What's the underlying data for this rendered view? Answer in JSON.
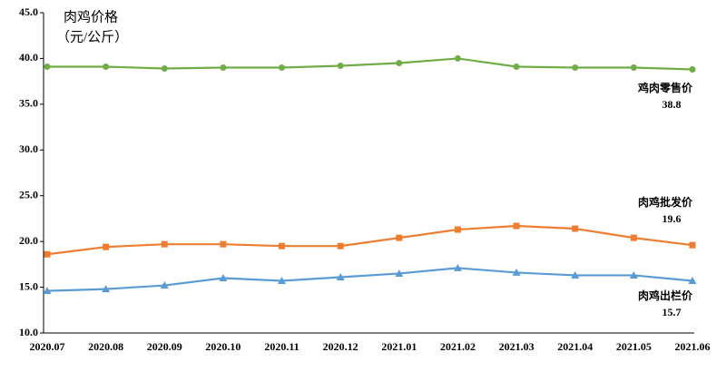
{
  "chart_data": {
    "type": "line",
    "title": "肉鸡价格",
    "ylabel": "（元/公斤）",
    "categories": [
      "2020.07",
      "2020.08",
      "2020.09",
      "2020.10",
      "2020.11",
      "2020.12",
      "2021.01",
      "2021.02",
      "2021.03",
      "2021.04",
      "2021.05",
      "2021.06"
    ],
    "series": [
      {
        "name": "鸡肉零售价",
        "color": "#70ad47",
        "marker": "circle",
        "values": [
          39.1,
          39.1,
          38.9,
          39.0,
          39.0,
          39.2,
          39.5,
          40.0,
          39.1,
          39.0,
          39.0,
          38.8
        ]
      },
      {
        "name": "肉鸡批发价",
        "color": "#ed7d31",
        "marker": "square",
        "values": [
          18.6,
          19.4,
          19.7,
          19.7,
          19.5,
          19.5,
          20.4,
          21.3,
          21.7,
          21.4,
          20.4,
          19.6
        ]
      },
      {
        "name": "肉鸡出栏价",
        "color": "#5b9bd5",
        "marker": "triangle",
        "values": [
          14.6,
          14.8,
          15.2,
          16.0,
          15.7,
          16.1,
          16.5,
          17.1,
          16.6,
          16.3,
          16.3,
          15.7
        ]
      }
    ],
    "ylim": [
      10,
      45
    ],
    "yticks": [
      {
        "value": 10,
        "label": "10.0"
      },
      {
        "value": 15,
        "label": "15.0"
      },
      {
        "value": 20,
        "label": "20.0"
      },
      {
        "value": 25,
        "label": "25.0"
      },
      {
        "value": 30,
        "label": "30.0"
      },
      {
        "value": 35,
        "label": "35.0"
      },
      {
        "value": 40,
        "label": "40.0"
      },
      {
        "value": 45,
        "label": "45.0"
      }
    ],
    "grid": false
  }
}
